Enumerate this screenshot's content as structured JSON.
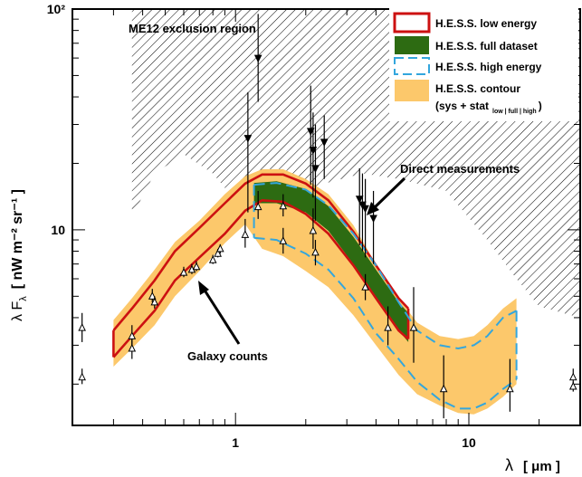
{
  "chart_data": {
    "type": "scatter",
    "xscale": "log",
    "yscale": "log",
    "xlim": [
      0.2,
      30
    ],
    "ylim": [
      1.3,
      100
    ],
    "xlabel_sym": "λ",
    "xlabel_unit": "[ μm ]",
    "ylabel_main": "λ F",
    "ylabel_sub": "λ",
    "ylabel_unit": "[ nW m⁻² sr⁻¹ ]",
    "yticks": [
      {
        "value": 10,
        "label": "10"
      },
      {
        "value": 100,
        "label": "10²"
      }
    ],
    "xticks": [
      {
        "value": 1,
        "label": "1"
      },
      {
        "value": 10,
        "label": "10"
      }
    ],
    "grid": false,
    "legend_position": "top-right",
    "legend": [
      {
        "key": "low",
        "label": "H.E.S.S. low energy",
        "color": "#cc1111",
        "style": "line-box"
      },
      {
        "key": "full",
        "label": "H.E.S.S. full dataset",
        "color": "#2d6b12",
        "style": "filled"
      },
      {
        "key": "high",
        "label": "H.E.S.S. high energy",
        "color": "#33a6dd",
        "style": "dashed-box"
      },
      {
        "key": "contour",
        "label": "H.E.S.S. contour",
        "label2": "(sys + stat",
        "label_sub": "low | full | high",
        "label_close": ")",
        "color": "#fcc86b",
        "style": "filled"
      }
    ],
    "annotations": {
      "exclusion": "ME12 exclusion region",
      "direct": "Direct measurements",
      "galaxy": "Galaxy counts"
    },
    "exclusion_region": {
      "lower_boundary": [
        [
          0.36,
          11.5
        ],
        [
          0.45,
          18
        ],
        [
          0.6,
          22
        ],
        [
          0.8,
          18
        ],
        [
          1.1,
          12
        ],
        [
          1.6,
          14
        ],
        [
          2.3,
          16
        ],
        [
          3.5,
          18
        ],
        [
          5,
          17
        ],
        [
          8,
          15
        ],
        [
          12,
          9
        ],
        [
          16,
          6
        ],
        [
          20,
          4.5
        ],
        [
          30,
          4
        ]
      ],
      "color": "#000"
    },
    "contour_band": {
      "x": [
        0.3,
        0.36,
        0.45,
        0.55,
        0.7,
        0.9,
        1.1,
        1.3,
        1.6,
        2.0,
        2.5,
        3.2,
        4.0,
        5.0,
        6.0,
        7.5,
        9.0,
        10.5,
        12.0,
        14.0,
        16.0
      ],
      "upper": [
        3.9,
        4.9,
        6.6,
        8.8,
        11.0,
        14.5,
        17.5,
        18.8,
        18.8,
        17.0,
        14.5,
        10.5,
        7.0,
        4.9,
        3.8,
        3.3,
        3.2,
        3.3,
        3.7,
        4.4,
        4.9
      ],
      "lower": [
        2.4,
        2.9,
        3.7,
        5.0,
        6.5,
        8.7,
        10.6,
        8.2,
        7.6,
        6.5,
        5.5,
        4.1,
        3.0,
        2.2,
        1.8,
        1.6,
        1.48,
        1.46,
        1.55,
        1.75,
        2.0
      ],
      "color": "#fcc86b"
    },
    "series": [
      {
        "name": "H.E.S.S. low energy",
        "key": "low",
        "color": "#cc1111",
        "x": [
          0.3,
          0.36,
          0.45,
          0.55,
          0.7,
          0.9,
          1.1,
          1.3,
          1.6,
          2.0,
          2.5,
          3.2,
          4.0,
          5.0,
          5.5
        ],
        "upper": [
          3.5,
          4.4,
          5.9,
          8.0,
          10.2,
          13.2,
          16.2,
          17.8,
          17.8,
          16.2,
          13.6,
          9.8,
          6.9,
          4.9,
          4.4
        ],
        "lower": [
          2.65,
          3.3,
          4.3,
          5.9,
          7.5,
          9.6,
          12.2,
          13.6,
          13.4,
          11.8,
          9.6,
          6.9,
          4.9,
          3.5,
          3.2
        ]
      },
      {
        "name": "H.E.S.S. full dataset",
        "key": "full",
        "color": "#2d6b12",
        "x": [
          1.2,
          1.5,
          2.0,
          2.5,
          3.2,
          4.0,
          5.0,
          5.5
        ],
        "upper": [
          16.3,
          16.6,
          15.3,
          12.8,
          9.3,
          6.6,
          4.7,
          4.2
        ],
        "lower": [
          13.2,
          13.2,
          12.0,
          9.9,
          7.0,
          4.9,
          3.5,
          3.1
        ]
      },
      {
        "name": "H.E.S.S. high energy",
        "key": "high",
        "color": "#33a6dd",
        "x": [
          1.2,
          1.5,
          2.0,
          2.5,
          3.2,
          4.0,
          5.0,
          6.0,
          7.5,
          9.0,
          10.5,
          12.0,
          14.0,
          16.0
        ],
        "upper": [
          16.0,
          16.3,
          15.2,
          12.9,
          9.6,
          6.9,
          4.7,
          3.5,
          3.0,
          2.9,
          3.0,
          3.3,
          4.0,
          4.3
        ],
        "lower": [
          9.2,
          9.0,
          7.8,
          6.6,
          4.9,
          3.4,
          2.6,
          2.05,
          1.7,
          1.55,
          1.55,
          1.65,
          1.9,
          2.1
        ]
      }
    ],
    "galaxy_counts": [
      {
        "x": 0.22,
        "y": 3.6,
        "lo": 3.1,
        "hi": 4.2
      },
      {
        "x": 0.22,
        "y": 2.15,
        "lo": 2.0,
        "hi": 2.35
      },
      {
        "x": 0.36,
        "y": 3.3,
        "lo": 3.0,
        "hi": 3.7
      },
      {
        "x": 0.36,
        "y": 2.9,
        "lo": 2.6,
        "hi": 3.2
      },
      {
        "x": 0.44,
        "y": 5.0,
        "lo": 4.7,
        "hi": 5.4
      },
      {
        "x": 0.45,
        "y": 4.7,
        "lo": 4.4,
        "hi": 5.0
      },
      {
        "x": 0.6,
        "y": 6.4,
        "lo": 6.1,
        "hi": 6.8
      },
      {
        "x": 0.65,
        "y": 6.6,
        "lo": 6.3,
        "hi": 7.0
      },
      {
        "x": 0.68,
        "y": 6.8,
        "lo": 6.5,
        "hi": 7.2
      },
      {
        "x": 0.8,
        "y": 7.3,
        "lo": 7.0,
        "hi": 7.7
      },
      {
        "x": 0.84,
        "y": 7.8,
        "lo": 7.5,
        "hi": 8.2
      },
      {
        "x": 0.86,
        "y": 8.2,
        "lo": 7.8,
        "hi": 8.6
      },
      {
        "x": 1.1,
        "y": 9.5,
        "lo": 8.3,
        "hi": 11.2
      },
      {
        "x": 1.25,
        "y": 12.7,
        "lo": 11.2,
        "hi": 15.0
      },
      {
        "x": 1.6,
        "y": 8.9,
        "lo": 7.8,
        "hi": 10.2
      },
      {
        "x": 1.6,
        "y": 12.8,
        "lo": 11.5,
        "hi": 14.5
      },
      {
        "x": 2.15,
        "y": 9.9,
        "lo": 8.2,
        "hi": 12.5
      },
      {
        "x": 2.2,
        "y": 7.9,
        "lo": 6.9,
        "hi": 9.0
      },
      {
        "x": 3.6,
        "y": 5.5,
        "lo": 4.8,
        "hi": 6.3
      },
      {
        "x": 4.5,
        "y": 3.6,
        "lo": 3.0,
        "hi": 4.5
      },
      {
        "x": 5.8,
        "y": 3.6,
        "lo": 2.5,
        "hi": 5.5
      },
      {
        "x": 7.8,
        "y": 1.9,
        "lo": 1.4,
        "hi": 2.7
      },
      {
        "x": 15.0,
        "y": 1.9,
        "lo": 1.5,
        "hi": 2.6
      },
      {
        "x": 28.0,
        "y": 2.15,
        "lo": 2.0,
        "hi": 2.35
      },
      {
        "x": 28.0,
        "y": 1.95,
        "lo": 1.85,
        "hi": 2.05
      }
    ],
    "direct_measurements": [
      {
        "x": 1.25,
        "y": 60,
        "lo": 38,
        "hi": 95
      },
      {
        "x": 1.13,
        "y": 26,
        "lo": 12,
        "hi": 42
      },
      {
        "x": 2.1,
        "y": 28,
        "lo": 16,
        "hi": 45
      },
      {
        "x": 2.15,
        "y": 23,
        "lo": 14,
        "hi": 34
      },
      {
        "x": 2.2,
        "y": 19,
        "lo": 11,
        "hi": 30
      },
      {
        "x": 2.4,
        "y": 25,
        "lo": 17,
        "hi": 33
      },
      {
        "x": 3.4,
        "y": 13.8,
        "lo": 8.5,
        "hi": 19
      },
      {
        "x": 3.5,
        "y": 13,
        "lo": 8.0,
        "hi": 18
      },
      {
        "x": 3.6,
        "y": 12.5,
        "lo": 7.5,
        "hi": 17
      },
      {
        "x": 3.9,
        "y": 11.3,
        "lo": 7.0,
        "hi": 15
      }
    ]
  }
}
